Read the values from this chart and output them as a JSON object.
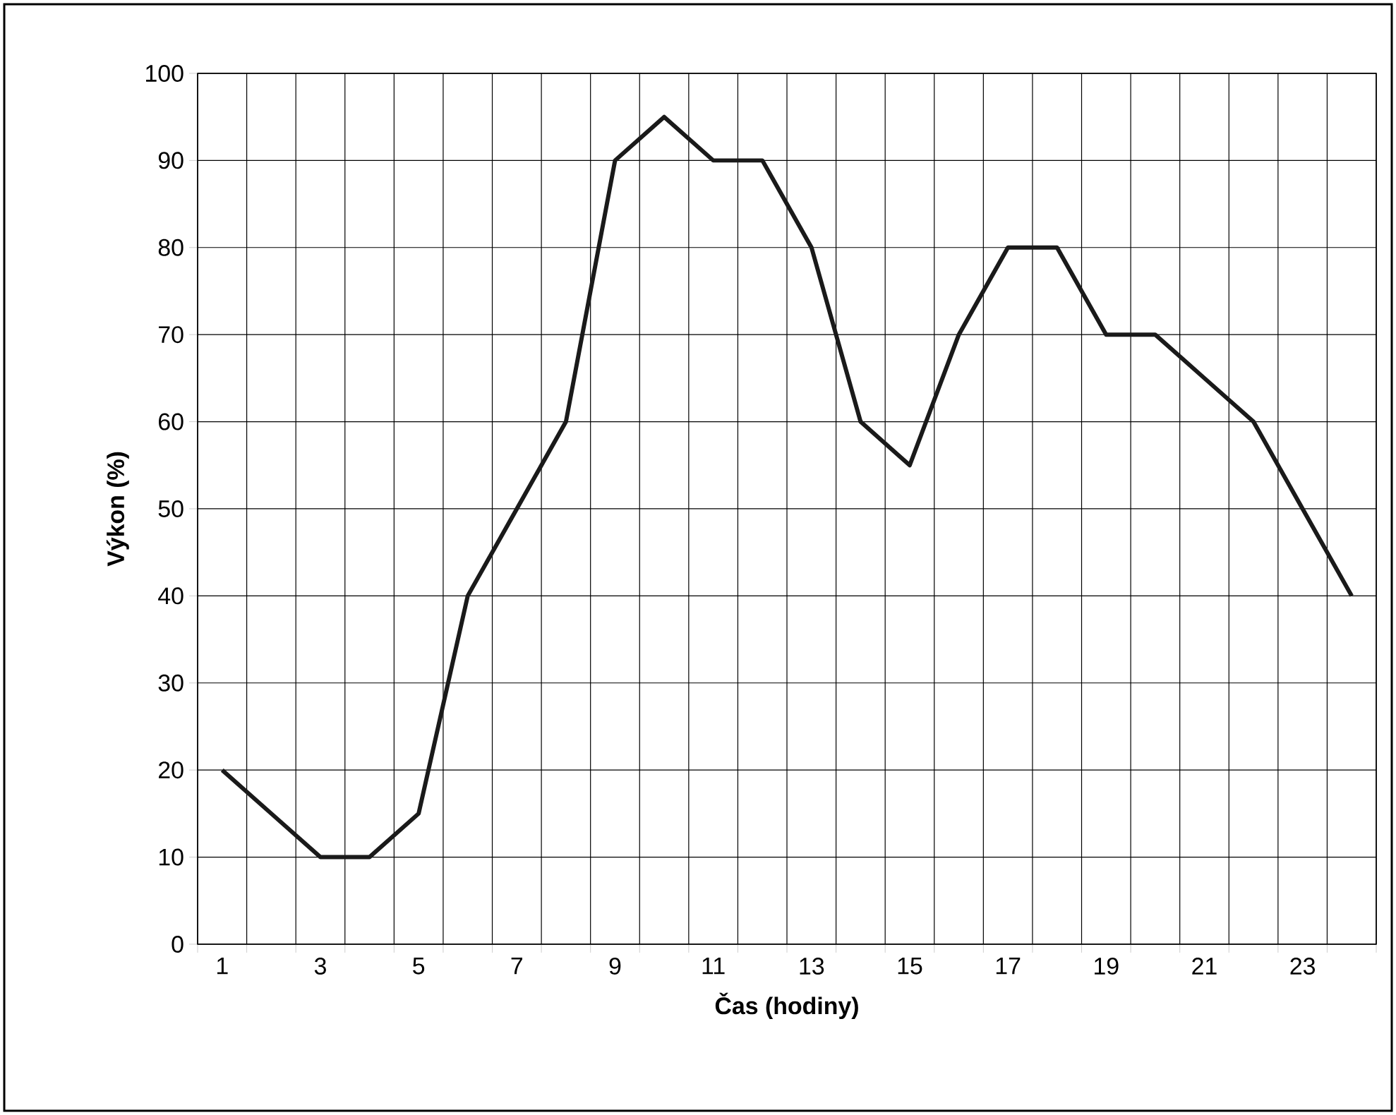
{
  "chart_data": {
    "type": "line",
    "xlabel": "Čas (hodiny)",
    "ylabel": "Výkon (%)",
    "categories": [
      "1",
      null,
      "3",
      null,
      "5",
      null,
      "7",
      null,
      "9",
      null,
      "11",
      null,
      "13",
      null,
      "15",
      null,
      "17",
      null,
      "19",
      null,
      "21",
      null,
      "23",
      null
    ],
    "series": [
      {
        "color": "#1a1a1a",
        "values": [
          20,
          15,
          10,
          10,
          15,
          40,
          50,
          60,
          90,
          95,
          90,
          90,
          80,
          60,
          55,
          70,
          80,
          80,
          70,
          70,
          65,
          60,
          50,
          40
        ]
      }
    ],
    "ylim": [
      0,
      100
    ],
    "yticks": [
      0,
      10,
      20,
      30,
      40,
      50,
      60,
      70,
      80,
      90,
      100
    ],
    "grid": true,
    "marker": "none",
    "line_style": "solid"
  }
}
